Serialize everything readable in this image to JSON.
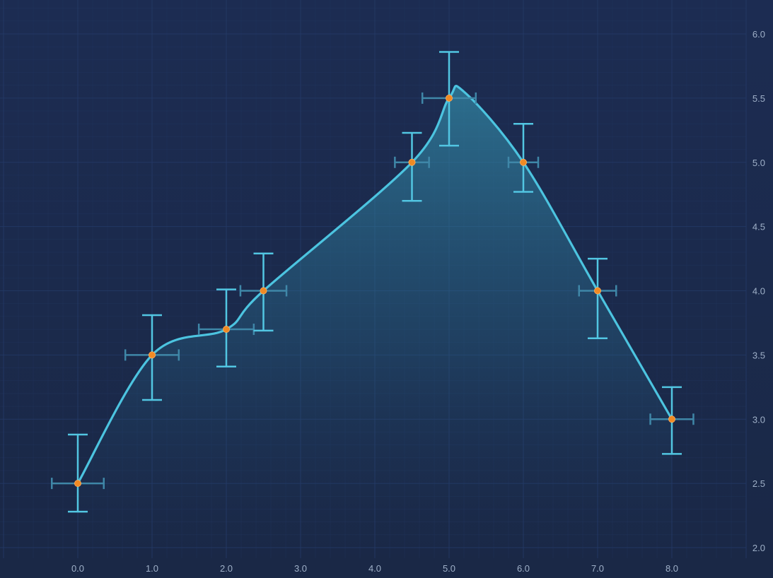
{
  "chart_data": {
    "type": "line",
    "x_ticks": [
      "0.0",
      "1.0",
      "2.0",
      "3.0",
      "4.0",
      "5.0",
      "6.0",
      "7.0",
      "8.0"
    ],
    "y_ticks": [
      "2.0",
      "2.5",
      "3.0",
      "3.5",
      "4.0",
      "4.5",
      "5.0",
      "5.5",
      "6.0"
    ],
    "xlim": [
      -1.0,
      9.0
    ],
    "ylim": [
      2.0,
      6.0
    ],
    "y_axis_position": "right",
    "grid": true,
    "series": [
      {
        "points": [
          {
            "x": 0.0,
            "y": 2.5,
            "y_err_low": 0.22,
            "y_err_high": 0.38,
            "x_err": 0.35
          },
          {
            "x": 1.0,
            "y": 3.5,
            "y_err_low": 0.35,
            "y_err_high": 0.31,
            "x_err": 0.36
          },
          {
            "x": 2.0,
            "y": 3.7,
            "y_err_low": 0.29,
            "y_err_high": 0.31,
            "x_err": 0.37
          },
          {
            "x": 2.5,
            "y": 4.0,
            "y_err_low": 0.31,
            "y_err_high": 0.29,
            "x_err": 0.31
          },
          {
            "x": 4.5,
            "y": 5.0,
            "y_err_low": 0.3,
            "y_err_high": 0.23,
            "x_err": 0.23
          },
          {
            "x": 5.0,
            "y": 5.5,
            "y_err_low": 0.37,
            "y_err_high": 0.36,
            "x_err": 0.36
          },
          {
            "x": 6.0,
            "y": 5.0,
            "y_err_low": 0.23,
            "y_err_high": 0.3,
            "x_err": 0.2
          },
          {
            "x": 7.0,
            "y": 4.0,
            "y_err_low": 0.37,
            "y_err_high": 0.25,
            "x_err": 0.25
          },
          {
            "x": 8.0,
            "y": 3.0,
            "y_err_low": 0.27,
            "y_err_high": 0.25,
            "x_err": 0.29
          }
        ],
        "curve_peak": {
          "x": 5.2,
          "y": 5.55
        },
        "line_color": "#4cc4e0",
        "marker_color": "#f08a24"
      }
    ],
    "colors": {
      "background": "#1b2a4a",
      "grid": "#243a66",
      "fill_top": "#3aa6c0",
      "errorbar_y": "#52c6e2",
      "errorbar_x": "#3f87a8",
      "tick_text": "#9fb0c8"
    }
  }
}
